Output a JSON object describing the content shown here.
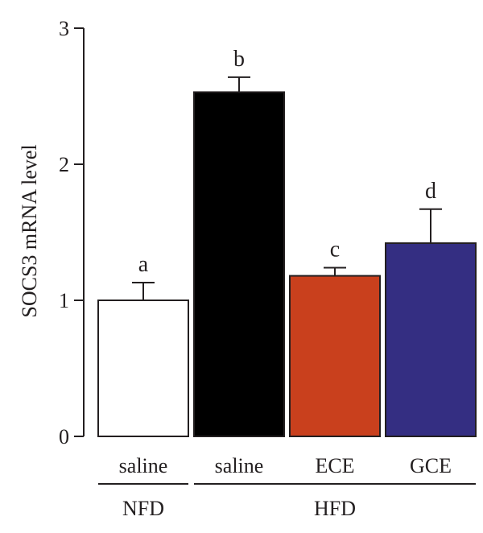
{
  "chart_data": {
    "type": "bar",
    "title": "",
    "xlabel": "",
    "ylabel": "SOCS3 mRNA level",
    "ylim": [
      0,
      3
    ],
    "yticks": [
      0,
      1,
      2,
      3
    ],
    "grid": false,
    "categories": [
      "saline",
      "saline",
      "ECE",
      "GCE"
    ],
    "groups": [
      {
        "label": "NFD",
        "categories": [
          0
        ]
      },
      {
        "label": "HFD",
        "categories": [
          1,
          2,
          3
        ]
      }
    ],
    "values": [
      1.0,
      2.53,
      1.18,
      1.42
    ],
    "errors": [
      0.13,
      0.11,
      0.06,
      0.25
    ],
    "significance_letters": [
      "a",
      "b",
      "c",
      "d"
    ],
    "colors": [
      "#ffffff",
      "#000000",
      "#c9401d",
      "#342e82"
    ]
  }
}
